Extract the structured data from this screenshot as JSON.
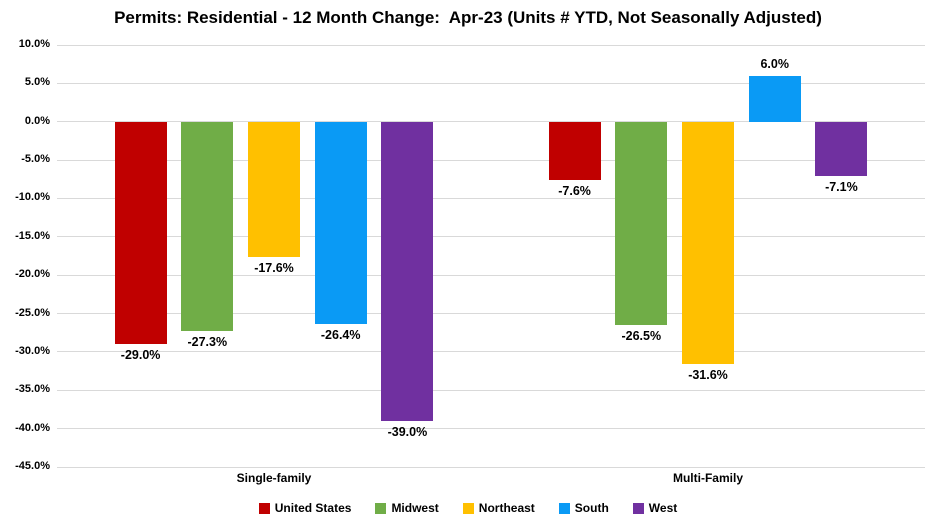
{
  "chart_data": {
    "type": "bar",
    "title": "Permits: Residential - 12 Month Change:  Apr-23 (Units # YTD, Not Seasonally Adjusted)",
    "categories": [
      "Single-family",
      "Multi-Family"
    ],
    "series": [
      {
        "name": "United States",
        "color": "#C00000",
        "values": [
          -29.0,
          -7.6
        ],
        "labels": [
          "-29.0%",
          "-7.6%"
        ]
      },
      {
        "name": "Midwest",
        "color": "#70AD47",
        "values": [
          -27.3,
          -26.5
        ],
        "labels": [
          "-27.3%",
          "-26.5%"
        ]
      },
      {
        "name": "Northeast",
        "color": "#FFC000",
        "values": [
          -17.6,
          -31.6
        ],
        "labels": [
          "-17.6%",
          "-31.6%"
        ]
      },
      {
        "name": "South",
        "color": "#0A9AF5",
        "values": [
          -26.4,
          6.0
        ],
        "labels": [
          "-26.4%",
          "6.0%"
        ]
      },
      {
        "name": "West",
        "color": "#7030A0",
        "values": [
          -39.0,
          -7.1
        ],
        "labels": [
          "-39.0%",
          "-7.1%"
        ]
      }
    ],
    "y_axis": {
      "max": 10,
      "min": -45,
      "step": 5,
      "tick_labels": [
        "10.0%",
        "5.0%",
        "0.0%",
        "-5.0%",
        "-10.0%",
        "-15.0%",
        "-20.0%",
        "-25.0%",
        "-30.0%",
        "-35.0%",
        "-40.0%",
        "-45.0%"
      ]
    },
    "grid": true,
    "gridline_color": "#D9D9D9",
    "legend_position": "bottom"
  }
}
